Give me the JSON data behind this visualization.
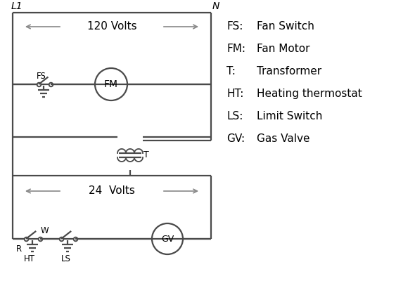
{
  "background_color": "#ffffff",
  "line_color": "#4a4a4a",
  "text_color": "#000000",
  "legend_items": [
    [
      "FS:",
      "Fan Switch"
    ],
    [
      "FM:",
      "Fan Motor"
    ],
    [
      "T:",
      "Transformer"
    ],
    [
      "HT:",
      "Heating thermostat"
    ],
    [
      "LS:",
      "Limit Switch"
    ],
    [
      "GV:",
      "Gas Valve"
    ]
  ],
  "L1_label": "L1",
  "N_label": "N",
  "volts120_label": "120 Volts",
  "volts24_label": "24  Volts",
  "T_label": "T",
  "R_label": "R",
  "W_label": "W",
  "HT_label": "HT",
  "LS_label": "LS",
  "FS_label": "FS",
  "FM_label": "FM",
  "GV_label": "GV",
  "arrow_color": "#888888"
}
